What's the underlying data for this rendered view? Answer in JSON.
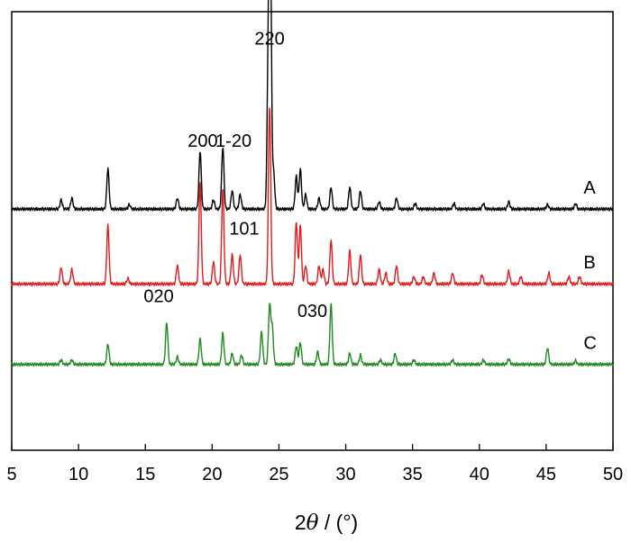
{
  "chart_data": {
    "type": "line",
    "xlabel_parts": {
      "prefix": "2",
      "theta": "θ",
      "suffix": " / (°)"
    },
    "xlim": [
      5,
      50
    ],
    "x_ticks": [
      5,
      10,
      15,
      20,
      25,
      30,
      35,
      40,
      45,
      50
    ],
    "y_ticks_shown": false,
    "grid": false,
    "series": [
      {
        "name": "A",
        "color": "#000000",
        "baseline": 0.66,
        "peaks": [
          [
            8.7,
            0.025
          ],
          [
            9.5,
            0.03
          ],
          [
            12.2,
            0.11
          ],
          [
            13.8,
            0.012
          ],
          [
            17.4,
            0.03
          ],
          [
            19.1,
            0.16
          ],
          [
            20.1,
            0.025
          ],
          [
            20.8,
            0.17
          ],
          [
            21.5,
            0.05
          ],
          [
            22.1,
            0.04
          ],
          [
            24.2,
            0.39
          ],
          [
            24.35,
            0.78
          ],
          [
            24.6,
            0.1
          ],
          [
            26.3,
            0.09
          ],
          [
            26.6,
            0.11
          ],
          [
            27.0,
            0.04
          ],
          [
            28.0,
            0.03
          ],
          [
            28.9,
            0.06
          ],
          [
            30.3,
            0.06
          ],
          [
            31.1,
            0.05
          ],
          [
            32.5,
            0.02
          ],
          [
            33.8,
            0.03
          ],
          [
            35.2,
            0.015
          ],
          [
            38.1,
            0.015
          ],
          [
            40.3,
            0.015
          ],
          [
            42.2,
            0.02
          ],
          [
            45.1,
            0.012
          ],
          [
            47.2,
            0.015
          ]
        ]
      },
      {
        "name": "B",
        "color": "#e31a1c",
        "baseline": 0.455,
        "peaks": [
          [
            8.7,
            0.045
          ],
          [
            9.5,
            0.04
          ],
          [
            12.2,
            0.16
          ],
          [
            13.7,
            0.015
          ],
          [
            17.4,
            0.05
          ],
          [
            19.1,
            0.28
          ],
          [
            20.1,
            0.06
          ],
          [
            20.8,
            0.26
          ],
          [
            21.5,
            0.08
          ],
          [
            22.1,
            0.08
          ],
          [
            24.3,
            0.49
          ],
          [
            26.3,
            0.17
          ],
          [
            26.6,
            0.16
          ],
          [
            27.0,
            0.05
          ],
          [
            28.0,
            0.05
          ],
          [
            28.3,
            0.04
          ],
          [
            28.9,
            0.12
          ],
          [
            30.3,
            0.09
          ],
          [
            31.1,
            0.08
          ],
          [
            32.5,
            0.04
          ],
          [
            33.0,
            0.03
          ],
          [
            33.8,
            0.05
          ],
          [
            35.1,
            0.02
          ],
          [
            35.8,
            0.02
          ],
          [
            36.6,
            0.03
          ],
          [
            38.0,
            0.03
          ],
          [
            40.2,
            0.025
          ],
          [
            42.2,
            0.035
          ],
          [
            43.1,
            0.02
          ],
          [
            45.2,
            0.03
          ],
          [
            46.7,
            0.02
          ],
          [
            47.5,
            0.02
          ]
        ]
      },
      {
        "name": "C",
        "color": "#1f8a1f",
        "baseline": 0.235,
        "peaks": [
          [
            8.7,
            0.012
          ],
          [
            9.5,
            0.012
          ],
          [
            12.2,
            0.055
          ],
          [
            16.6,
            0.115
          ],
          [
            17.4,
            0.02
          ],
          [
            19.1,
            0.07
          ],
          [
            20.8,
            0.085
          ],
          [
            21.5,
            0.03
          ],
          [
            22.2,
            0.025
          ],
          [
            23.7,
            0.09
          ],
          [
            24.3,
            0.16
          ],
          [
            24.5,
            0.1
          ],
          [
            26.3,
            0.05
          ],
          [
            26.6,
            0.06
          ],
          [
            27.9,
            0.035
          ],
          [
            28.9,
            0.165
          ],
          [
            30.3,
            0.03
          ],
          [
            31.1,
            0.025
          ],
          [
            32.6,
            0.012
          ],
          [
            33.7,
            0.03
          ],
          [
            35.1,
            0.012
          ],
          [
            38.0,
            0.012
          ],
          [
            40.3,
            0.012
          ],
          [
            42.2,
            0.015
          ],
          [
            45.1,
            0.045
          ],
          [
            47.2,
            0.01
          ]
        ]
      }
    ],
    "annotations": [
      {
        "text": "220",
        "x": 24.3,
        "y": 1.11
      },
      {
        "text": "200",
        "x": 19.3,
        "y": 0.83
      },
      {
        "text": "1-20",
        "x": 21.6,
        "y": 0.83
      },
      {
        "text": "101",
        "x": 22.4,
        "y": 0.59
      },
      {
        "text": "020",
        "x": 16.0,
        "y": 0.405
      },
      {
        "text": "030",
        "x": 27.5,
        "y": 0.365
      }
    ]
  }
}
